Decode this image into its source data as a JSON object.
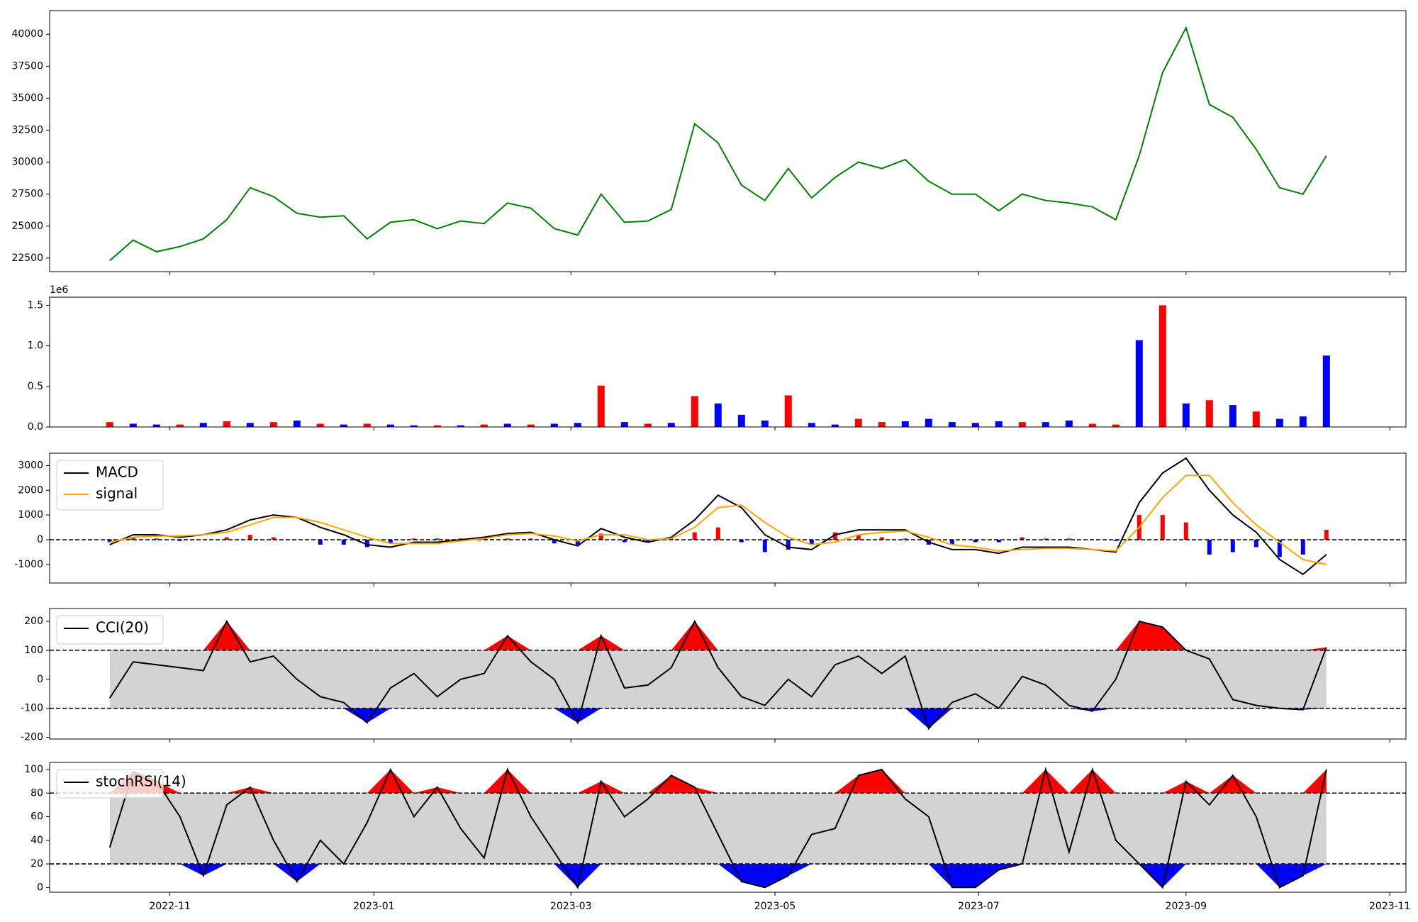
{
  "chart_data": [
    {
      "type": "line",
      "color": "#008000",
      "values": [
        22300,
        23900,
        23000,
        23400,
        24000,
        25500,
        28000,
        27300,
        26000,
        25700,
        25800,
        24000,
        25300,
        25500,
        24800,
        25400,
        25200,
        26800,
        26400,
        24800,
        24300,
        27500,
        25300,
        25400,
        26300,
        33000,
        31500,
        28200,
        27000,
        29500,
        27200,
        28800,
        30000,
        29500,
        30200,
        28500,
        27500,
        27500,
        26200,
        27500,
        27000,
        26800,
        26500,
        25500,
        30500,
        37000,
        40500,
        34500,
        33500,
        31000,
        28000,
        27500,
        30500
      ],
      "xlim": [
        -2.57,
        55.4
      ],
      "ylim": [
        21440,
        41840
      ],
      "yticks": [
        22500,
        25000,
        27500,
        30000,
        32500,
        35000,
        37500,
        40000
      ]
    },
    {
      "type": "bar",
      "offset_label": "1e6",
      "values": [
        0.06,
        0.04,
        0.03,
        0.03,
        0.05,
        0.07,
        0.05,
        0.06,
        0.08,
        0.04,
        0.03,
        0.04,
        0.03,
        0.02,
        0.02,
        0.02,
        0.03,
        0.04,
        0.03,
        0.04,
        0.05,
        0.51,
        0.06,
        0.04,
        0.05,
        0.38,
        0.29,
        0.15,
        0.08,
        0.39,
        0.05,
        0.03,
        0.1,
        0.06,
        0.07,
        0.1,
        0.06,
        0.05,
        0.07,
        0.06,
        0.06,
        0.08,
        0.04,
        0.03,
        1.07,
        1.5,
        0.29,
        0.33,
        0.27,
        0.19,
        0.1,
        0.13,
        0.88
      ],
      "colors": [
        "#ff0000",
        "#0000ff",
        "#0000ff",
        "#ff0000",
        "#0000ff",
        "#ff0000",
        "#0000ff",
        "#ff0000",
        "#0000ff",
        "#ff0000",
        "#0000ff",
        "#ff0000",
        "#0000ff",
        "#0000ff",
        "#ff0000",
        "#0000ff",
        "#ff0000",
        "#0000ff",
        "#ff0000",
        "#0000ff",
        "#0000ff",
        "#ff0000",
        "#0000ff",
        "#ff0000",
        "#0000ff",
        "#ff0000",
        "#0000ff",
        "#0000ff",
        "#0000ff",
        "#ff0000",
        "#0000ff",
        "#0000ff",
        "#ff0000",
        "#ff0000",
        "#0000ff",
        "#0000ff",
        "#0000ff",
        "#0000ff",
        "#0000ff",
        "#ff0000",
        "#0000ff",
        "#0000ff",
        "#ff0000",
        "#ff0000",
        "#0000ff",
        "#ff0000",
        "#0000ff",
        "#ff0000",
        "#0000ff",
        "#ff0000",
        "#0000ff",
        "#0000ff",
        "#0000ff"
      ],
      "xlim": [
        -2.57,
        55.4
      ],
      "ylim": [
        0,
        1.6
      ],
      "yticks": [
        {
          "value": 0,
          "label": "0.0"
        },
        0.5,
        {
          "value": 1,
          "label": "1.0"
        },
        1.5
      ]
    },
    {
      "type": "macd",
      "legend": "upper left",
      "hlines": [
        0
      ],
      "series": [
        {
          "name": "MACD",
          "color": "#000000",
          "values": [
            -200,
            200,
            200,
            100,
            200,
            400,
            800,
            1000,
            900,
            500,
            200,
            -200,
            -300,
            -100,
            -100,
            0,
            100,
            250,
            300,
            0,
            -250,
            450,
            100,
            -100,
            100,
            800,
            1800,
            1300,
            200,
            -300,
            -400,
            200,
            400,
            400,
            400,
            -100,
            -400,
            -400,
            -550,
            -300,
            -300,
            -300,
            -400,
            -500,
            1500,
            2700,
            3300,
            2000,
            1000,
            300,
            -800,
            -1400,
            -600
          ]
        },
        {
          "name": "signal",
          "color": "#ffa500",
          "values": [
            -100,
            100,
            150,
            150,
            200,
            300,
            600,
            900,
            900,
            700,
            400,
            100,
            -150,
            -150,
            -150,
            -50,
            50,
            200,
            250,
            150,
            -50,
            200,
            200,
            0,
            50,
            500,
            1300,
            1400,
            700,
            100,
            -200,
            -100,
            200,
            300,
            350,
            100,
            -200,
            -300,
            -450,
            -400,
            -350,
            -350,
            -400,
            -450,
            500,
            1700,
            2600,
            2600,
            1500,
            600,
            -100,
            -800,
            -1000
          ]
        }
      ],
      "hist_values": [
        -100,
        100,
        50,
        -50,
        0,
        100,
        200,
        100,
        0,
        -200,
        -200,
        -300,
        -150,
        50,
        50,
        50,
        50,
        50,
        50,
        -150,
        -200,
        250,
        -100,
        -100,
        50,
        300,
        500,
        -100,
        -500,
        -400,
        -200,
        300,
        200,
        100,
        50,
        -200,
        -200,
        -100,
        -100,
        100,
        50,
        50,
        0,
        -50,
        1000,
        1000,
        700,
        -600,
        -500,
        -300,
        -700,
        -600,
        400
      ],
      "hist_up_color": "#ff0000",
      "hist_down_color": "#0000ff",
      "xlim": [
        -2.57,
        55.4
      ],
      "ylim": [
        -1750,
        3500
      ],
      "yticks": [
        -1000,
        0,
        1000,
        2000,
        3000
      ]
    },
    {
      "type": "band",
      "legend": "upper left",
      "bands": [
        -100,
        100
      ],
      "band_color": "#d3d3d3",
      "above_color": "#ff0000",
      "below_color": "#0000ff",
      "series": [
        {
          "name": "CCI(20)",
          "color": "#000000",
          "values": [
            -65,
            60,
            50,
            40,
            30,
            200,
            60,
            80,
            0,
            -60,
            -80,
            -150,
            -30,
            20,
            -60,
            0,
            20,
            150,
            60,
            0,
            -150,
            150,
            -30,
            -20,
            40,
            200,
            40,
            -60,
            -90,
            0,
            -60,
            50,
            80,
            20,
            80,
            -170,
            -80,
            -50,
            -100,
            10,
            -20,
            -90,
            -110,
            0,
            200,
            180,
            100,
            70,
            -70,
            -90,
            -100,
            -105,
            110
          ]
        }
      ],
      "xlim": [
        -2.57,
        55.4
      ],
      "ylim": [
        -206,
        244
      ],
      "yticks": [
        -200,
        -100,
        0,
        100,
        200
      ]
    },
    {
      "type": "band",
      "legend": "upper left",
      "bands": [
        20,
        80
      ],
      "band_color": "#d3d3d3",
      "above_color": "#ff0000",
      "below_color": "#0000ff",
      "series": [
        {
          "name": "stochRSI(14)",
          "color": "#000000",
          "values": [
            34,
            98,
            90,
            60,
            10,
            70,
            85,
            40,
            5,
            40,
            20,
            55,
            100,
            60,
            85,
            50,
            25,
            100,
            60,
            30,
            0,
            90,
            60,
            75,
            95,
            85,
            45,
            5,
            0,
            10,
            45,
            50,
            95,
            100,
            75,
            60,
            0,
            0,
            15,
            20,
            100,
            30,
            100,
            40,
            20,
            0,
            90,
            70,
            95,
            60,
            0,
            10,
            100
          ]
        }
      ],
      "xlim": [
        -2.57,
        55.4
      ],
      "ylim": [
        -4,
        106
      ],
      "yticks": [
        0,
        20,
        40,
        60,
        80,
        100
      ],
      "xticks": [
        {
          "value": 2.57,
          "label": "2022-11"
        },
        {
          "value": 11.29,
          "label": "2023-01"
        },
        {
          "value": 19.71,
          "label": "2023-03"
        },
        {
          "value": 28.43,
          "label": "2023-05"
        },
        {
          "value": 37.14,
          "label": "2023-07"
        },
        {
          "value": 46,
          "label": "2023-09"
        },
        {
          "value": 54.71,
          "label": "2023-11"
        }
      ]
    }
  ]
}
